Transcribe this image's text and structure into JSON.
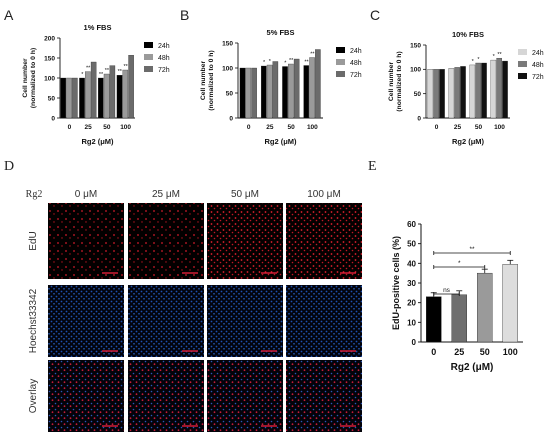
{
  "panels": {
    "A": "A",
    "B": "B",
    "C": "C",
    "D": "D",
    "E": "E"
  },
  "chart_data": [
    {
      "id": "A",
      "type": "bar",
      "title": "1% FBS",
      "xlabel": "Rg2 (μM)",
      "ylabel": "Cell number (normalized to 0 h)",
      "ylim": [
        0,
        200
      ],
      "yticks": [
        "0",
        "50",
        "100",
        "150",
        "200"
      ],
      "categories": [
        "0",
        "25",
        "50",
        "100"
      ],
      "legend_position": "right",
      "series": [
        {
          "name": "24h",
          "color": "#000000",
          "values": [
            100,
            100,
            100,
            107
          ]
        },
        {
          "name": "48h",
          "color": "#9a9a9a",
          "values": [
            100,
            116,
            110,
            120
          ]
        },
        {
          "name": "72h",
          "color": "#6b6b6b",
          "values": [
            100,
            140,
            131,
            157
          ]
        }
      ],
      "annotations": [
        [
          "",
          "*",
          "**",
          "**"
        ],
        [
          "",
          "**",
          "**",
          "**"
        ],
        [
          "",
          "",
          "",
          ""
        ]
      ]
    },
    {
      "id": "B",
      "type": "bar",
      "title": "5% FBS",
      "xlabel": "Rg2 (μM)",
      "ylabel": "Cell number (normalized to 0 h)",
      "ylim": [
        0,
        150
      ],
      "yticks": [
        "0",
        "50",
        "100",
        "150"
      ],
      "categories": [
        "0",
        "25",
        "50",
        "100"
      ],
      "legend_position": "right",
      "series": [
        {
          "name": "24h",
          "color": "#000000",
          "values": [
            100,
            104,
            103,
            105
          ]
        },
        {
          "name": "48h",
          "color": "#9a9a9a",
          "values": [
            100,
            106,
            108,
            121
          ]
        },
        {
          "name": "72h",
          "color": "#6b6b6b",
          "values": [
            100,
            113,
            118,
            137
          ]
        }
      ],
      "annotations": [
        [
          "",
          "*",
          "*",
          "**"
        ],
        [
          "",
          "*",
          "**",
          "**"
        ],
        [
          "",
          "",
          "",
          ""
        ]
      ]
    },
    {
      "id": "C",
      "type": "bar",
      "title": "10% FBS",
      "xlabel": "Rg2 (μM)",
      "ylabel": "Cell number (normalized to 0 h)",
      "ylim": [
        0,
        150
      ],
      "yticks": [
        "0",
        "50",
        "100",
        "150"
      ],
      "categories": [
        "0",
        "25",
        "50",
        "100"
      ],
      "legend_position": "right",
      "series": [
        {
          "name": "24h",
          "color": "#d6d6d6",
          "values": [
            100,
            102,
            109,
            119
          ]
        },
        {
          "name": "48h",
          "color": "#7a7a7a",
          "values": [
            100,
            104,
            113,
            123
          ]
        },
        {
          "name": "72h",
          "color": "#111111",
          "values": [
            100,
            106,
            113,
            117
          ]
        }
      ],
      "annotations": [
        [
          "",
          "",
          "*",
          "*"
        ],
        [
          "",
          "",
          "*",
          "**"
        ],
        [
          "",
          "",
          "",
          ""
        ]
      ]
    },
    {
      "id": "E",
      "type": "bar",
      "title": "",
      "xlabel": "Rg2 (μM)",
      "ylabel": "EdU-positive cells (%)",
      "ylim": [
        0,
        60
      ],
      "yticks": [
        "0",
        "10",
        "20",
        "30",
        "40",
        "50",
        "60"
      ],
      "categories": [
        "0",
        "25",
        "50",
        "100"
      ],
      "values": [
        23,
        24,
        35,
        39.5
      ],
      "colors": [
        "#000000",
        "#6f6f6f",
        "#9a9a9a",
        "#dddddd"
      ],
      "significance": [
        {
          "from": "0",
          "to": "25",
          "label": "ns"
        },
        {
          "from": "0",
          "to": "50",
          "label": "*"
        },
        {
          "from": "0",
          "to": "100",
          "label": "**"
        }
      ]
    }
  ],
  "image_grid": {
    "treatment_label": "Rg2",
    "columns": [
      "0 μM",
      "25 μM",
      "50 μM",
      "100 μM"
    ],
    "rows": [
      "EdU",
      "Hoechst33342",
      "Overlay"
    ]
  }
}
